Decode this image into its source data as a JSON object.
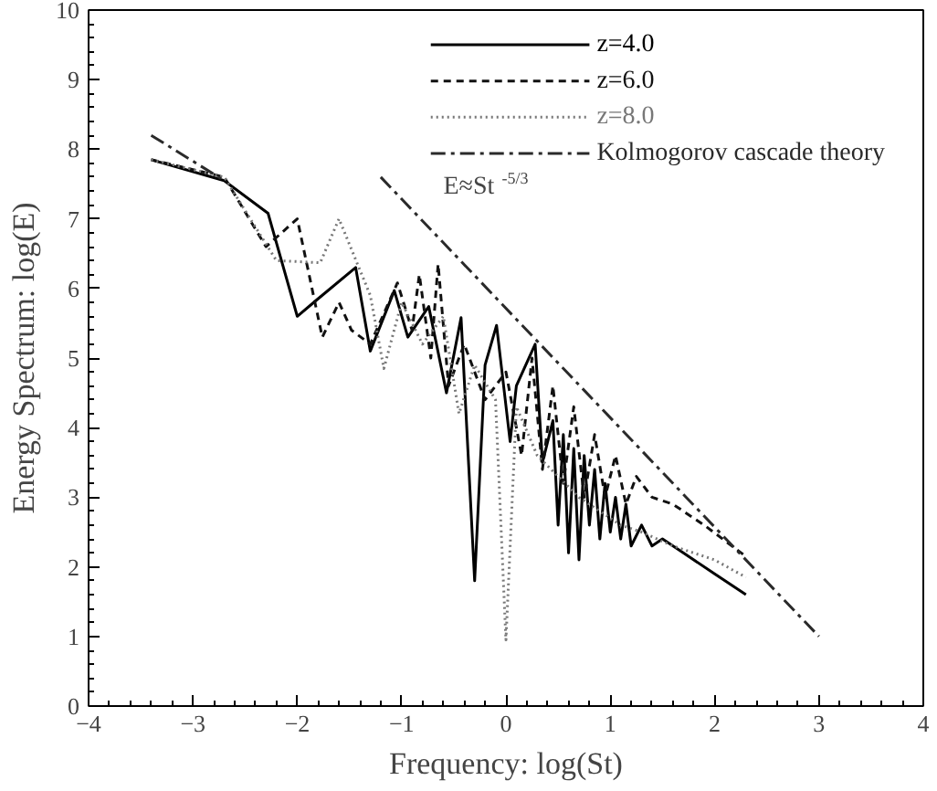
{
  "chart_data": {
    "type": "line",
    "xlabel": "Frequency: log(St)",
    "ylabel": "Energy Spectrum: log(E)",
    "xlim": [
      -4,
      4
    ],
    "ylim": [
      0,
      10
    ],
    "xticks": [
      -4,
      -3,
      -2,
      -1,
      0,
      1,
      2,
      3,
      4
    ],
    "yticks": [
      0,
      1,
      2,
      3,
      4,
      5,
      6,
      7,
      8,
      9,
      10
    ],
    "grid": false,
    "legend": "top right",
    "marker": "none",
    "annotations": [
      "E≈St$^{-5/3}$"
    ],
    "series": [
      {
        "name": "z=4.0",
        "color": "#000000",
        "line_style": "solid",
        "x": [
          -3.4,
          -2.7,
          -2.28,
          -2.0,
          -1.81,
          -1.44,
          -1.3,
          -1.07,
          -0.94,
          -0.74,
          -0.57,
          -0.43,
          -0.3,
          -0.2,
          -0.09,
          0.04,
          0.1,
          0.28,
          0.35,
          0.45,
          0.5,
          0.55,
          0.6,
          0.65,
          0.7,
          0.75,
          0.8,
          0.85,
          0.9,
          0.95,
          1.0,
          1.05,
          1.1,
          1.15,
          1.2,
          1.3,
          1.4,
          1.5,
          1.7,
          2.0,
          2.3
        ],
        "values": [
          7.85,
          7.55,
          7.08,
          5.6,
          5.84,
          6.3,
          5.1,
          5.97,
          5.3,
          5.74,
          4.5,
          5.58,
          1.8,
          4.9,
          5.47,
          3.8,
          4.6,
          5.2,
          3.5,
          4.1,
          2.6,
          3.9,
          2.2,
          3.7,
          2.1,
          3.6,
          2.6,
          3.4,
          2.4,
          3.2,
          2.5,
          3.0,
          2.4,
          2.9,
          2.3,
          2.6,
          2.3,
          2.4,
          2.2,
          1.9,
          1.6
        ]
      },
      {
        "name": "z=6.0",
        "color": "#111111",
        "line_style": "dashed",
        "x": [
          -3.4,
          -2.7,
          -2.3,
          -2.0,
          -1.76,
          -1.6,
          -1.48,
          -1.3,
          -1.04,
          -0.9,
          -0.83,
          -0.72,
          -0.65,
          -0.55,
          -0.4,
          -0.2,
          0.0,
          0.15,
          0.25,
          0.35,
          0.45,
          0.55,
          0.65,
          0.75,
          0.85,
          0.95,
          1.05,
          1.15,
          1.25,
          1.4,
          1.6,
          1.9,
          2.3
        ],
        "values": [
          7.85,
          7.6,
          6.6,
          7.0,
          5.3,
          5.8,
          5.4,
          5.2,
          6.08,
          5.4,
          6.2,
          5.0,
          6.35,
          4.6,
          5.2,
          4.4,
          4.8,
          3.6,
          5.0,
          3.4,
          4.6,
          3.2,
          4.3,
          3.0,
          3.9,
          3.0,
          3.6,
          2.9,
          3.3,
          3.0,
          2.9,
          2.6,
          2.15
        ]
      },
      {
        "name": "z=8.0",
        "color": "#777777",
        "line_style": "dotted",
        "x": [
          -3.4,
          -2.7,
          -2.2,
          -1.78,
          -1.6,
          -1.3,
          -1.17,
          -1.0,
          -0.8,
          -0.6,
          -0.45,
          -0.3,
          -0.1,
          0.0,
          0.1,
          0.3,
          0.5,
          0.7,
          0.9,
          1.1,
          1.3,
          1.6,
          2.0,
          2.3
        ],
        "values": [
          7.85,
          7.6,
          6.4,
          6.37,
          7.0,
          5.9,
          4.85,
          5.8,
          5.2,
          5.6,
          4.2,
          4.9,
          4.4,
          0.95,
          4.3,
          3.6,
          3.3,
          3.0,
          2.8,
          2.6,
          2.5,
          2.3,
          2.1,
          1.85
        ]
      },
      {
        "name": "Kolmogorov cascade theory",
        "color": "#2a2a2a",
        "line_style": "dashdot",
        "x": [
          -3.4,
          -2.7,
          -1.9,
          -1.2,
          3.0
        ],
        "values": [
          8.2,
          7.55,
          null,
          7.6,
          1.0
        ]
      }
    ]
  }
}
